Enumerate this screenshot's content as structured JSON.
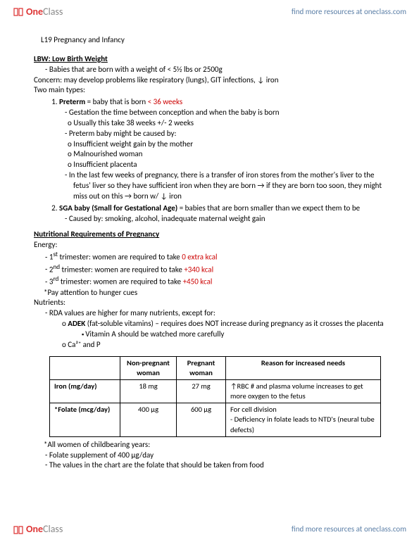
{
  "header": {
    "logo_one": "One",
    "logo_class": "Class",
    "link": "find more resources at oneclass.com"
  },
  "title": "L19 Pregnancy and Infancy",
  "lbw": {
    "heading": "LBW: Low Birth Weight",
    "def": "Babies that are born with a weight of < 5½ lbs or 2500g",
    "concern": "Concern: may develop problems like respiratory (lungs), GIT infections, ↓ iron",
    "types_intro": "Two main types:",
    "preterm": {
      "label": "Preterm",
      "eq": " = baby that is born ",
      "red": "< 36 weeks",
      "gest": "Gestation the time between conception and when the baby is born",
      "gest_usual": "Usually this take 38 weeks +/- 2 weeks",
      "cause_intro": "Preterm baby might be caused by:",
      "causes": [
        "Insufficient weight gain by the mother",
        "Malnourished woman",
        "Insufficient placenta"
      ],
      "iron": "In the last few weeks of pregnancy, there is a transfer of iron stores from the mother's liver to the fetus' liver so they have sufficient iron when they are born → if they are born too soon, they might miss out on this → born w/ ↓ iron"
    },
    "sga": {
      "label": "SGA baby (Small for Gestational Age)",
      "eq": " = babies that are born smaller than we expect them to be",
      "cause": "Caused by: smoking, alcohol, inadequate maternal weight gain"
    }
  },
  "nutri": {
    "heading": "Nutritional Requirements of Pregnancy",
    "energy_label": "Energy:",
    "tri1_a": "1",
    "tri1_sup": "st",
    "tri1_b": " trimester: women are required to take ",
    "tri1_red": "0 extra kcal",
    "tri2_a": "2",
    "tri2_sup": "nd",
    "tri2_b": " trimester: women are required to take ",
    "tri2_red": "+340 kcal",
    "tri3_a": "3",
    "tri3_sup": "rd",
    "tri3_b": " trimester: women are required to take ",
    "tri3_red": "+450 kcal",
    "hunger": "*Pay attention to hunger cues",
    "nutrients_label": "Nutrients:",
    "rda": "RDA values are higher for many nutrients, except for:",
    "adek_b": "ADEK",
    "adek_rest": " (fat-soluble vitamins) – requires does NOT increase during pregnancy as it crosses the placenta",
    "vit_a": "Vitamin A should be watched more carefully",
    "ca_p": "Ca²⁺ and P"
  },
  "table": {
    "cols": [
      "",
      "Non-pregnant woman",
      "Pregnant woman",
      "Reason for increased needs"
    ],
    "rows": [
      {
        "label": "Iron (mg/day)",
        "np": "18 mg",
        "p": "27 mg",
        "reason": "↑RBC # and plasma volume increases to get more oxygen to the fetus"
      },
      {
        "label": "*Folate (mcg/day)",
        "np": "400 µg",
        "p": "600 µg",
        "reason": "For cell division\n- Deficiency in folate leads to NTD's (neural tube defects)"
      }
    ],
    "col_widths": [
      "100px",
      "80px",
      "70px",
      "220px"
    ]
  },
  "footnotes": {
    "women": "*All women of childbearing years:",
    "supp": "Folate supplement of 400 µg/day",
    "values": "The values in the chart are the folate that should be taken from food"
  }
}
